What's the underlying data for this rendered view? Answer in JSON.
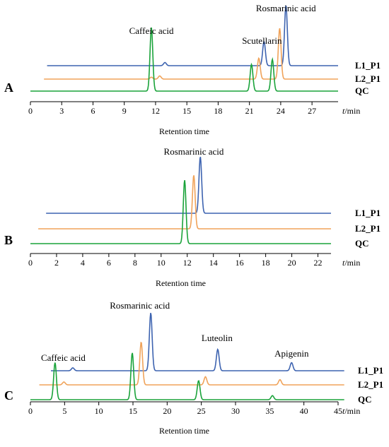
{
  "chart_data": [
    {
      "type": "line",
      "panel": "A",
      "xlabel": "Retention time",
      "unit_var": "t",
      "unit_rest": "/min",
      "xlim": [
        0,
        29.5
      ],
      "xticks": [
        0,
        3,
        6,
        9,
        12,
        15,
        18,
        21,
        24,
        27
      ],
      "annotations": [
        {
          "text": "Caffeic acid",
          "x": 11.6
        },
        {
          "text": "Scutellarin",
          "x": 22.2
        },
        {
          "text": "Rosmarinic acid",
          "x": 24.5
        }
      ],
      "series": [
        {
          "name": "L1_P1",
          "color": "#3d63b0",
          "x_start": 1.6,
          "x_end": 29.5,
          "peaks": [
            [
              12.9,
              0.05
            ],
            [
              22.4,
              0.38
            ],
            [
              24.5,
              0.95
            ]
          ]
        },
        {
          "name": "L2_P1",
          "color": "#f0a35a",
          "x_start": 1.3,
          "x_end": 29.5,
          "peaks": [
            [
              11.6,
              0.03
            ],
            [
              12.4,
              0.05
            ],
            [
              21.9,
              0.33
            ],
            [
              23.9,
              0.8
            ]
          ]
        },
        {
          "name": "QC",
          "color": "#1aa33a",
          "x_start": 0,
          "x_end": 29.5,
          "peaks": [
            [
              11.6,
              1.0
            ],
            [
              21.2,
              0.42
            ],
            [
              23.2,
              0.5
            ]
          ]
        }
      ]
    },
    {
      "type": "line",
      "panel": "B",
      "xlabel": "Retention time",
      "unit_var": "t",
      "unit_rest": "/min",
      "xlim": [
        0,
        23
      ],
      "xticks": [
        0,
        2,
        4,
        6,
        8,
        10,
        12,
        14,
        16,
        18,
        20,
        22
      ],
      "annotations": [
        {
          "text": "Rosmarinic acid",
          "x": 12.5
        }
      ],
      "series": [
        {
          "name": "L1_P1",
          "color": "#3d63b0",
          "x_start": 1.2,
          "x_end": 23,
          "peaks": [
            [
              13.0,
              1.0
            ]
          ]
        },
        {
          "name": "L2_P1",
          "color": "#f0a35a",
          "x_start": 0.6,
          "x_end": 23,
          "peaks": [
            [
              12.5,
              0.95
            ]
          ]
        },
        {
          "name": "QC",
          "color": "#1aa33a",
          "x_start": 0,
          "x_end": 23,
          "peaks": [
            [
              11.8,
              1.0
            ]
          ]
        }
      ]
    },
    {
      "type": "line",
      "panel": "C",
      "xlabel": "Retention time",
      "unit_var": "t",
      "unit_rest": "/min",
      "xlim": [
        0,
        45
      ],
      "xticks": [
        0,
        5,
        10,
        15,
        20,
        25,
        30,
        35,
        40,
        45
      ],
      "annotations": [
        {
          "text": "Caffeic acid",
          "x": 4.8
        },
        {
          "text": "Rosmarinic acid",
          "x": 16.0
        },
        {
          "text": "Luteolin",
          "x": 27.3
        },
        {
          "text": "Apigenin",
          "x": 38.2
        }
      ],
      "series": [
        {
          "name": "L1_P1",
          "color": "#3d63b0",
          "x_start": 3.0,
          "x_end": 48,
          "peaks": [
            [
              6.2,
              0.05
            ],
            [
              17.6,
              1.0
            ],
            [
              27.4,
              0.37
            ],
            [
              38.2,
              0.14
            ]
          ]
        },
        {
          "name": "L2_P1",
          "color": "#f0a35a",
          "x_start": 1.3,
          "x_end": 48,
          "peaks": [
            [
              4.9,
              0.05
            ],
            [
              16.2,
              0.74
            ],
            [
              25.6,
              0.14
            ],
            [
              36.5,
              0.09
            ]
          ]
        },
        {
          "name": "QC",
          "color": "#1aa33a",
          "x_start": 0,
          "x_end": 48,
          "peaks": [
            [
              3.6,
              0.64
            ],
            [
              14.9,
              0.81
            ],
            [
              24.6,
              0.33
            ],
            [
              35.4,
              0.07
            ]
          ]
        }
      ]
    }
  ]
}
